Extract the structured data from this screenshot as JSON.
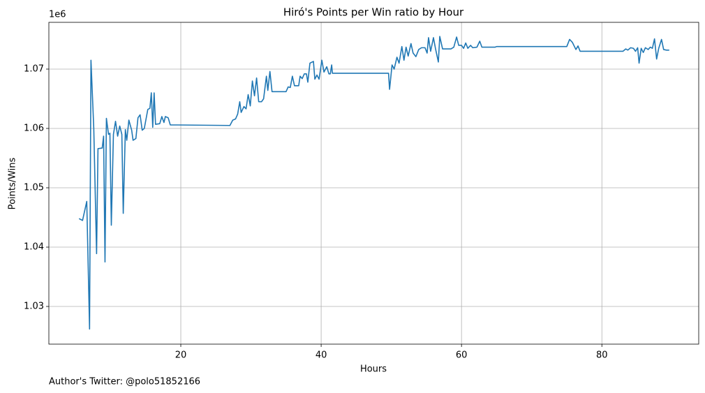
{
  "chart_data": {
    "type": "line",
    "title": "Hiró's Points per Win ratio by Hour",
    "xlabel": "Hours",
    "ylabel": "Points/Wins",
    "y_offset_label": "1e6",
    "footnote": "Author's Twitter: @polo51852166",
    "color": "#1f77b4",
    "grid": true,
    "xlim": [
      1.2,
      93.8
    ],
    "ylim": [
      1.02365,
      1.07788
    ],
    "xticks": [
      20,
      40,
      60,
      80
    ],
    "yticks": [
      1.03,
      1.04,
      1.05,
      1.06,
      1.07
    ],
    "x": [
      5.5,
      6,
      6.6,
      7.0,
      7.2,
      7.6,
      8.0,
      8.2,
      8.8,
      9.0,
      9.2,
      9.4,
      9.7,
      9.9,
      10.1,
      10.4,
      10.7,
      11.0,
      11.3,
      11.6,
      11.8,
      12.1,
      12.3,
      12.6,
      13.0,
      13.2,
      13.6,
      13.9,
      14.2,
      14.5,
      14.8,
      15.3,
      15.6,
      15.8,
      16.0,
      16.2,
      16.4,
      17.0,
      17.3,
      17.6,
      17.8,
      18.2,
      18.5,
      27.0,
      27.4,
      27.8,
      28.1,
      28.4,
      28.6,
      29.0,
      29.3,
      29.6,
      29.9,
      30.2,
      30.5,
      30.8,
      31.1,
      31.5,
      31.8,
      32.2,
      32.4,
      32.7,
      33.0,
      35.0,
      35.3,
      35.6,
      35.9,
      36.2,
      36.8,
      37.0,
      37.3,
      37.6,
      37.9,
      38.1,
      38.4,
      38.9,
      39.1,
      39.4,
      39.7,
      40.1,
      40.4,
      40.8,
      41.1,
      41.3,
      41.5,
      41.6,
      49.6,
      49.75,
      50.1,
      50.4,
      50.8,
      51.1,
      51.5,
      51.8,
      52.1,
      52.4,
      52.8,
      53.1,
      53.5,
      53.9,
      54.3,
      54.8,
      55.1,
      55.3,
      55.6,
      56.0,
      56.3,
      56.7,
      56.9,
      57.3,
      58.5,
      58.9,
      59.3,
      59.6,
      60.0,
      60.3,
      60.6,
      60.9,
      61.3,
      61.6,
      62.2,
      62.6,
      62.9,
      64.8,
      65.0,
      75.0,
      75.4,
      75.8,
      76.3,
      76.6,
      76.9,
      83.0,
      83.4,
      83.7,
      84.1,
      84.5,
      84.8,
      85.1,
      85.3,
      85.6,
      85.9,
      86.2,
      86.6,
      86.9,
      87.2,
      87.5,
      87.8,
      88.1,
      88.5,
      88.8,
      89.2,
      89.6
    ],
    "series": [
      {
        "values": [
          1.0448,
          1.0445,
          1.0477,
          1.0262,
          1.0715,
          1.06,
          1.0389,
          1.0566,
          1.0567,
          1.0587,
          1.0375,
          1.0617,
          1.059,
          1.0592,
          1.0437,
          1.059,
          1.0612,
          1.0587,
          1.0604,
          1.059,
          1.0457,
          1.0598,
          1.058,
          1.0614,
          1.0597,
          1.058,
          1.0583,
          1.0618,
          1.0623,
          1.0597,
          1.06,
          1.0632,
          1.0634,
          1.066,
          1.0602,
          1.066,
          1.0607,
          1.0608,
          1.062,
          1.061,
          1.062,
          1.0618,
          1.0606,
          1.0605,
          1.0614,
          1.0616,
          1.0624,
          1.0645,
          1.0627,
          1.0637,
          1.0633,
          1.0657,
          1.0638,
          1.068,
          1.0655,
          1.0685,
          1.0645,
          1.0645,
          1.065,
          1.0688,
          1.0664,
          1.0696,
          1.0662,
          1.0662,
          1.067,
          1.0669,
          1.0688,
          1.0672,
          1.0672,
          1.0688,
          1.0684,
          1.0692,
          1.0692,
          1.0678,
          1.071,
          1.0713,
          1.0683,
          1.069,
          1.0683,
          1.0715,
          1.0695,
          1.0704,
          1.0692,
          1.0692,
          1.0707,
          1.0693,
          1.0693,
          1.0666,
          1.0707,
          1.07,
          1.072,
          1.071,
          1.0738,
          1.0715,
          1.0737,
          1.0722,
          1.0743,
          1.0727,
          1.0721,
          1.0733,
          1.0736,
          1.0736,
          1.0727,
          1.0753,
          1.073,
          1.0753,
          1.0734,
          1.0712,
          1.0755,
          1.0734,
          1.0734,
          1.0737,
          1.0754,
          1.074,
          1.074,
          1.0735,
          1.0744,
          1.0735,
          1.074,
          1.0736,
          1.0737,
          1.0747,
          1.0737,
          1.0737,
          1.0738,
          1.0738,
          1.075,
          1.0745,
          1.0733,
          1.0739,
          1.073,
          1.073,
          1.0734,
          1.0732,
          1.0736,
          1.0735,
          1.073,
          1.0736,
          1.071,
          1.0735,
          1.0728,
          1.0736,
          1.0733,
          1.0737,
          1.0735,
          1.0751,
          1.0717,
          1.0735,
          1.075,
          1.0733,
          1.0732,
          1.0732
        ]
      }
    ]
  }
}
